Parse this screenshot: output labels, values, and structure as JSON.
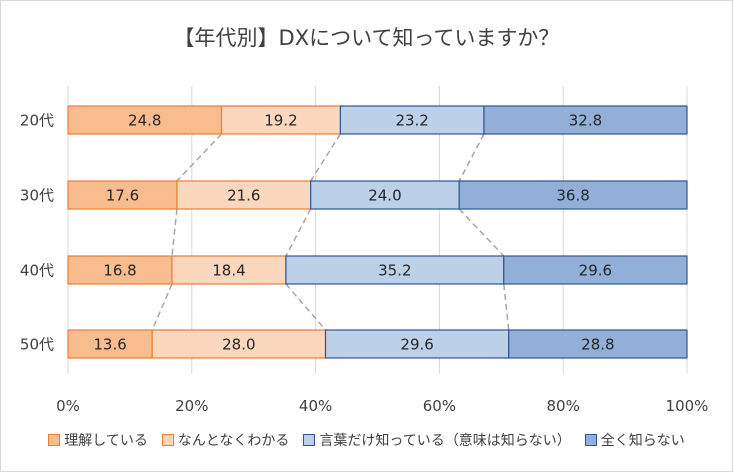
{
  "chart_data": {
    "type": "bar",
    "orientation": "horizontal",
    "stacked": true,
    "percent": true,
    "title": "【年代別】DXについて知っていますか？",
    "categories": [
      "20代",
      "30代",
      "40代",
      "50代"
    ],
    "series": [
      {
        "name": "理解している",
        "values": [
          24.8,
          17.6,
          16.8,
          13.6
        ],
        "fill": "#f8bc8f",
        "stroke": "#ed7d31"
      },
      {
        "name": "なんとなくわかる",
        "values": [
          19.2,
          21.6,
          18.4,
          28.0
        ],
        "fill": "#fbd8bd",
        "stroke": "#ed7d31"
      },
      {
        "name": "言葉だけ知っている（意味は知らない）",
        "values": [
          23.2,
          24.0,
          35.2,
          29.6
        ],
        "fill": "#bcd0e8",
        "stroke": "#2f5597"
      },
      {
        "name": "全く知らない",
        "values": [
          32.8,
          36.8,
          29.6,
          28.8
        ],
        "fill": "#91afd7",
        "stroke": "#2f5597"
      }
    ],
    "x_ticks": [
      "0%",
      "20%",
      "40%",
      "60%",
      "80%",
      "100%"
    ],
    "xlim": [
      0,
      100
    ],
    "grid": true,
    "series_lines": true,
    "legend_position": "bottom"
  }
}
